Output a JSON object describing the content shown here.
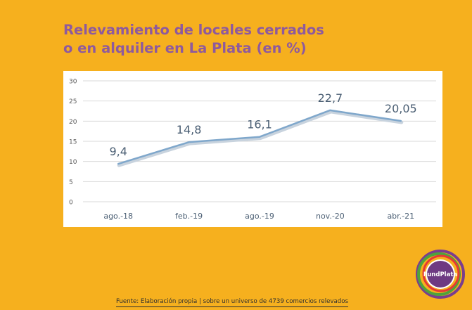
{
  "title_lines": [
    "Relevamiento de locales cerrados",
    "o en alquiler en La Plata (en %)"
  ],
  "footer": "Fuente: Elaboración propia | sobre un universo de 4739 comercios relevados",
  "logo_text": "FundPlata",
  "colors": {
    "background": "#F6B01E",
    "title": "#8E5A9E",
    "line": "#7FA7CB",
    "label": "#4A5E73"
  },
  "chart_data": {
    "type": "line",
    "title": "Relevamiento de locales cerrados o en alquiler en La Plata (en %)",
    "categories": [
      "ago.-18",
      "feb.-19",
      "ago.-19",
      "nov.-20",
      "abr.-21"
    ],
    "series": [
      {
        "values": [
          9.4,
          14.8,
          16.1,
          22.7,
          20.05
        ]
      }
    ],
    "data_labels": [
      "9,4",
      "14,8",
      "16,1",
      "22,7",
      "20,05"
    ],
    "yticks": [
      0,
      5,
      10,
      15,
      20,
      25,
      30
    ],
    "ylim": [
      0,
      30
    ],
    "grid": true,
    "legend": "none"
  }
}
